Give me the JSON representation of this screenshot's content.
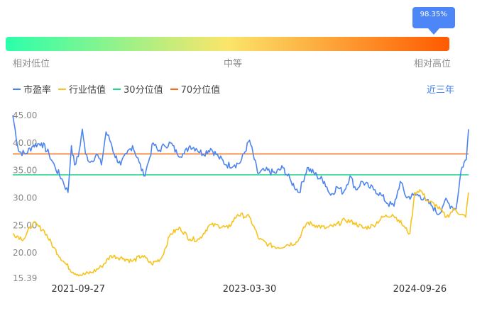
{
  "gauge": {
    "percent_label": "98.35%",
    "percent_value": 0.9835,
    "low_label": "相对低位",
    "mid_label": "中等",
    "high_label": "相对高位",
    "gradient_colors": [
      "#2bffab",
      "#fbe56a",
      "#ff5a00"
    ],
    "tooltip_color": "#4d87f7"
  },
  "legend": {
    "pe_label": "市盈率",
    "industry_label": "行业估值",
    "p30_label": "30分位值",
    "p70_label": "70分位值"
  },
  "period_link": "近三年",
  "chart_data": {
    "type": "line",
    "xlabel": "",
    "ylabel": "",
    "ylim": [
      15.39,
      45.0
    ],
    "y_ticks": [
      "45.00",
      "40.00",
      "35.00",
      "30.00",
      "25.00",
      "20.00",
      "15.39"
    ],
    "y_tick_values": [
      45.0,
      40.0,
      35.0,
      30.0,
      25.0,
      20.0,
      15.39
    ],
    "x_range": [
      "2021-03-01",
      "2025-03-01"
    ],
    "x_ticks": [
      "2021-09-27",
      "2023-03-30",
      "2024-09-26"
    ],
    "grid": false,
    "legend_position": "top-left",
    "series": [
      {
        "name": "市盈率",
        "color": "#4d85f0",
        "x": [
          "2021-03-01",
          "2021-03-20",
          "2021-04-10",
          "2021-05-05",
          "2021-06-01",
          "2021-06-25",
          "2021-07-15",
          "2021-08-05",
          "2021-08-25",
          "2021-09-05",
          "2021-09-15",
          "2021-09-27",
          "2021-10-10",
          "2021-10-20",
          "2021-11-05",
          "2021-11-25",
          "2021-12-10",
          "2021-12-25",
          "2022-01-10",
          "2022-01-20",
          "2022-02-10",
          "2022-03-01",
          "2022-03-20",
          "2022-04-10",
          "2022-04-25",
          "2022-05-10",
          "2022-05-25",
          "2022-06-10",
          "2022-06-30",
          "2022-07-20",
          "2022-08-10",
          "2022-09-01",
          "2022-09-20",
          "2022-10-10",
          "2022-11-01",
          "2022-11-25",
          "2022-12-20",
          "2023-01-15",
          "2023-02-10",
          "2023-03-01",
          "2023-03-30",
          "2023-04-25",
          "2023-05-20",
          "2023-06-20",
          "2023-07-15",
          "2023-08-10",
          "2023-09-05",
          "2023-10-01",
          "2023-11-01",
          "2023-11-25",
          "2023-12-15",
          "2024-01-05",
          "2024-01-25",
          "2024-02-15",
          "2024-03-05",
          "2024-03-25",
          "2024-04-15",
          "2024-05-05",
          "2024-05-25",
          "2024-06-15",
          "2024-07-05",
          "2024-07-25",
          "2024-08-15",
          "2024-09-05",
          "2024-09-26",
          "2024-10-15",
          "2024-11-05",
          "2024-11-25",
          "2024-12-15",
          "2025-01-05",
          "2025-01-20",
          "2025-02-05",
          "2025-02-15",
          "2025-02-22",
          "2025-03-01"
        ],
        "values": [
          45.0,
          38.5,
          38.0,
          39.5,
          40.0,
          38.0,
          35.5,
          33.5,
          31.0,
          39.5,
          36.0,
          37.5,
          42.5,
          38.0,
          36.5,
          38.0,
          36.0,
          42.0,
          40.0,
          38.0,
          36.0,
          38.0,
          39.5,
          36.5,
          34.0,
          36.5,
          40.0,
          38.5,
          39.5,
          40.0,
          38.0,
          38.0,
          39.5,
          39.0,
          38.0,
          39.0,
          37.5,
          36.0,
          36.0,
          36.5,
          40.5,
          34.5,
          35.0,
          34.5,
          35.5,
          33.0,
          31.0,
          35.5,
          34.0,
          33.0,
          30.5,
          32.0,
          31.0,
          34.0,
          31.5,
          33.0,
          32.0,
          31.5,
          30.5,
          29.0,
          28.5,
          33.0,
          30.0,
          30.5,
          30.5,
          29.5,
          28.5,
          27.0,
          29.5,
          28.5,
          28.0,
          35.0,
          36.5,
          37.0,
          42.5
        ]
      },
      {
        "name": "行业估值",
        "color": "#f7c31f",
        "x": [
          "2021-03-01",
          "2021-04-05",
          "2021-05-05",
          "2021-06-10",
          "2021-07-10",
          "2021-08-10",
          "2021-09-10",
          "2021-10-10",
          "2021-11-10",
          "2021-12-10",
          "2022-01-10",
          "2022-02-20",
          "2022-03-20",
          "2022-04-20",
          "2022-05-20",
          "2022-06-20",
          "2022-07-20",
          "2022-08-20",
          "2022-09-20",
          "2022-10-20",
          "2022-11-20",
          "2022-12-20",
          "2023-01-20",
          "2023-02-20",
          "2023-03-30",
          "2023-04-30",
          "2023-05-30",
          "2023-06-30",
          "2023-07-30",
          "2023-08-30",
          "2023-09-30",
          "2023-10-30",
          "2023-11-30",
          "2023-12-30",
          "2024-01-30",
          "2024-02-28",
          "2024-03-30",
          "2024-04-30",
          "2024-05-30",
          "2024-06-30",
          "2024-07-20",
          "2024-08-10",
          "2024-08-25",
          "2024-09-10",
          "2024-09-26",
          "2024-10-20",
          "2024-11-20",
          "2024-12-20",
          "2025-01-15",
          "2025-02-05",
          "2025-02-20",
          "2025-03-01"
        ],
        "values": [
          23.5,
          22.5,
          25.5,
          24.0,
          21.0,
          18.5,
          16.5,
          16.0,
          16.5,
          17.5,
          19.5,
          19.0,
          18.5,
          19.5,
          18.0,
          19.0,
          23.5,
          24.5,
          22.5,
          22.5,
          25.0,
          25.0,
          24.5,
          27.0,
          26.5,
          22.5,
          21.5,
          21.0,
          21.5,
          22.0,
          25.5,
          25.0,
          24.5,
          25.0,
          26.0,
          25.5,
          24.5,
          25.0,
          26.5,
          27.0,
          26.0,
          24.5,
          23.5,
          31.0,
          31.5,
          29.5,
          28.5,
          26.5,
          28.0,
          27.0,
          26.5,
          31.0
        ]
      }
    ],
    "reference_lines": [
      {
        "name": "30分位值",
        "value": 34.2,
        "color": "#1ed88b"
      },
      {
        "name": "70分位值",
        "value": 38.0,
        "color": "#fa6b14"
      }
    ]
  }
}
